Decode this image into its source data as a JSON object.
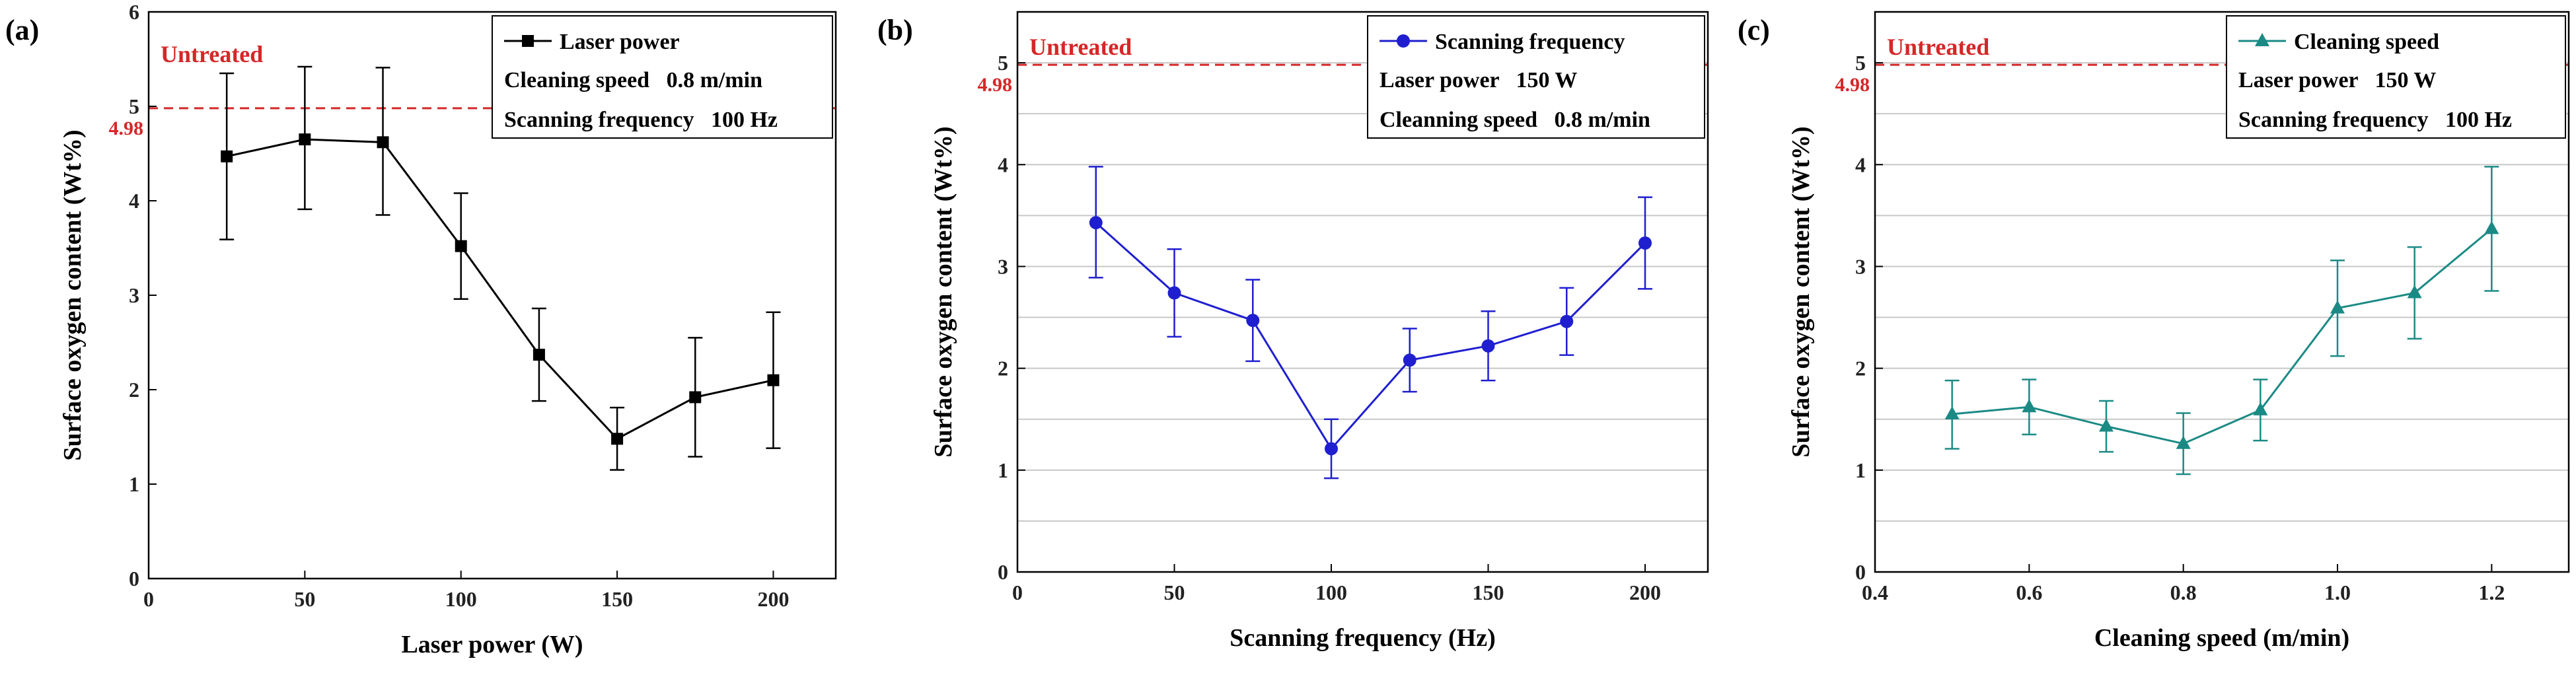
{
  "chart_data": [
    {
      "type": "line",
      "panel_label": "(a)",
      "xlabel": "Laser power (W)",
      "ylabel": "Surface oxygen content (Wt%)",
      "xlim": [
        0,
        220
      ],
      "ylim": [
        0,
        6
      ],
      "xticks": [
        0,
        50,
        100,
        150,
        200
      ],
      "xtick_labels": [
        "0",
        "50",
        "100",
        "150",
        "200"
      ],
      "yticks": [
        0,
        1,
        2,
        3,
        4,
        5,
        6
      ],
      "ytick_labels": [
        "0",
        "1",
        "2",
        "3",
        "4",
        "5",
        "6"
      ],
      "grid": false,
      "marker": "square",
      "color": "#000000",
      "series": [
        {
          "name": "Laser power",
          "x": [
            25,
            50,
            75,
            100,
            125,
            150,
            175,
            200
          ],
          "y": [
            4.47,
            4.65,
            4.62,
            3.52,
            2.37,
            1.48,
            1.92,
            2.1
          ],
          "err_low": [
            0.88,
            0.74,
            0.77,
            0.56,
            0.49,
            0.33,
            0.63,
            0.72
          ],
          "err_high": [
            0.88,
            0.77,
            0.79,
            0.56,
            0.49,
            0.33,
            0.63,
            0.72
          ]
        }
      ],
      "legend_lines": [
        "Cleaning speed   0.8 m/min",
        "Scanning frequency   100 Hz"
      ],
      "legend_position": "top-right",
      "reference": {
        "y": 4.98,
        "label": "Untreated",
        "value_label": "4.98",
        "color": "#d62728"
      }
    },
    {
      "type": "line",
      "panel_label": "(b)",
      "xlabel": "Scanning frequency (Hz)",
      "ylabel": "Surface oxygen content (Wt%)",
      "xlim": [
        0,
        220
      ],
      "ylim": [
        0,
        5.5
      ],
      "xticks": [
        0,
        50,
        100,
        150,
        200
      ],
      "xtick_labels": [
        "0",
        "50",
        "100",
        "150",
        "200"
      ],
      "yticks": [
        0,
        1,
        2,
        3,
        4,
        5
      ],
      "ytick_labels": [
        "0",
        "1",
        "2",
        "3",
        "4",
        "5"
      ],
      "grid": true,
      "marker": "circle",
      "color": "#1f1fd0",
      "series": [
        {
          "name": "Scanning frequency",
          "x": [
            25,
            50,
            75,
            100,
            125,
            150,
            175,
            200
          ],
          "y": [
            3.43,
            2.74,
            2.47,
            1.21,
            2.08,
            2.22,
            2.46,
            3.23
          ],
          "err_low": [
            0.54,
            0.43,
            0.4,
            0.29,
            0.31,
            0.34,
            0.33,
            0.45
          ],
          "err_high": [
            0.55,
            0.43,
            0.4,
            0.29,
            0.31,
            0.34,
            0.33,
            0.45
          ]
        }
      ],
      "legend_lines": [
        "Laser power   150 W",
        "Cleanning speed   0.8 m/min"
      ],
      "legend_position": "top-right",
      "reference": {
        "y": 4.98,
        "label": "Untreated",
        "value_label": "4.98",
        "color": "#d62728"
      }
    },
    {
      "type": "line",
      "panel_label": "(c)",
      "xlabel": "Cleaning speed (m/min)",
      "ylabel": "Surface oxygen content (Wt%)",
      "xlim": [
        0.4,
        1.3
      ],
      "ylim": [
        0,
        5.5
      ],
      "xticks": [
        0.4,
        0.6,
        0.8,
        1.0,
        1.2
      ],
      "xtick_labels": [
        "0.4",
        "0.6",
        "0.8",
        "1.0",
        "1.2"
      ],
      "yticks": [
        0,
        1,
        2,
        3,
        4,
        5
      ],
      "ytick_labels": [
        "0",
        "1",
        "2",
        "3",
        "4",
        "5"
      ],
      "grid": true,
      "marker": "triangle",
      "color": "#1b8a85",
      "series": [
        {
          "name": "Cleaning speed",
          "x": [
            0.5,
            0.6,
            0.7,
            0.8,
            0.9,
            1.0,
            1.1,
            1.2
          ],
          "y": [
            1.55,
            1.62,
            1.43,
            1.26,
            1.59,
            2.59,
            2.74,
            3.37
          ],
          "err_low": [
            0.34,
            0.27,
            0.25,
            0.3,
            0.3,
            0.47,
            0.45,
            0.61
          ],
          "err_high": [
            0.33,
            0.27,
            0.25,
            0.3,
            0.3,
            0.47,
            0.45,
            0.61
          ]
        }
      ],
      "legend_lines": [
        "Laser power   150 W",
        "Scanning frequency   100 Hz"
      ],
      "legend_position": "top-right",
      "reference": {
        "y": 4.98,
        "label": "Untreated",
        "value_label": "4.98",
        "color": "#d62728"
      }
    }
  ]
}
